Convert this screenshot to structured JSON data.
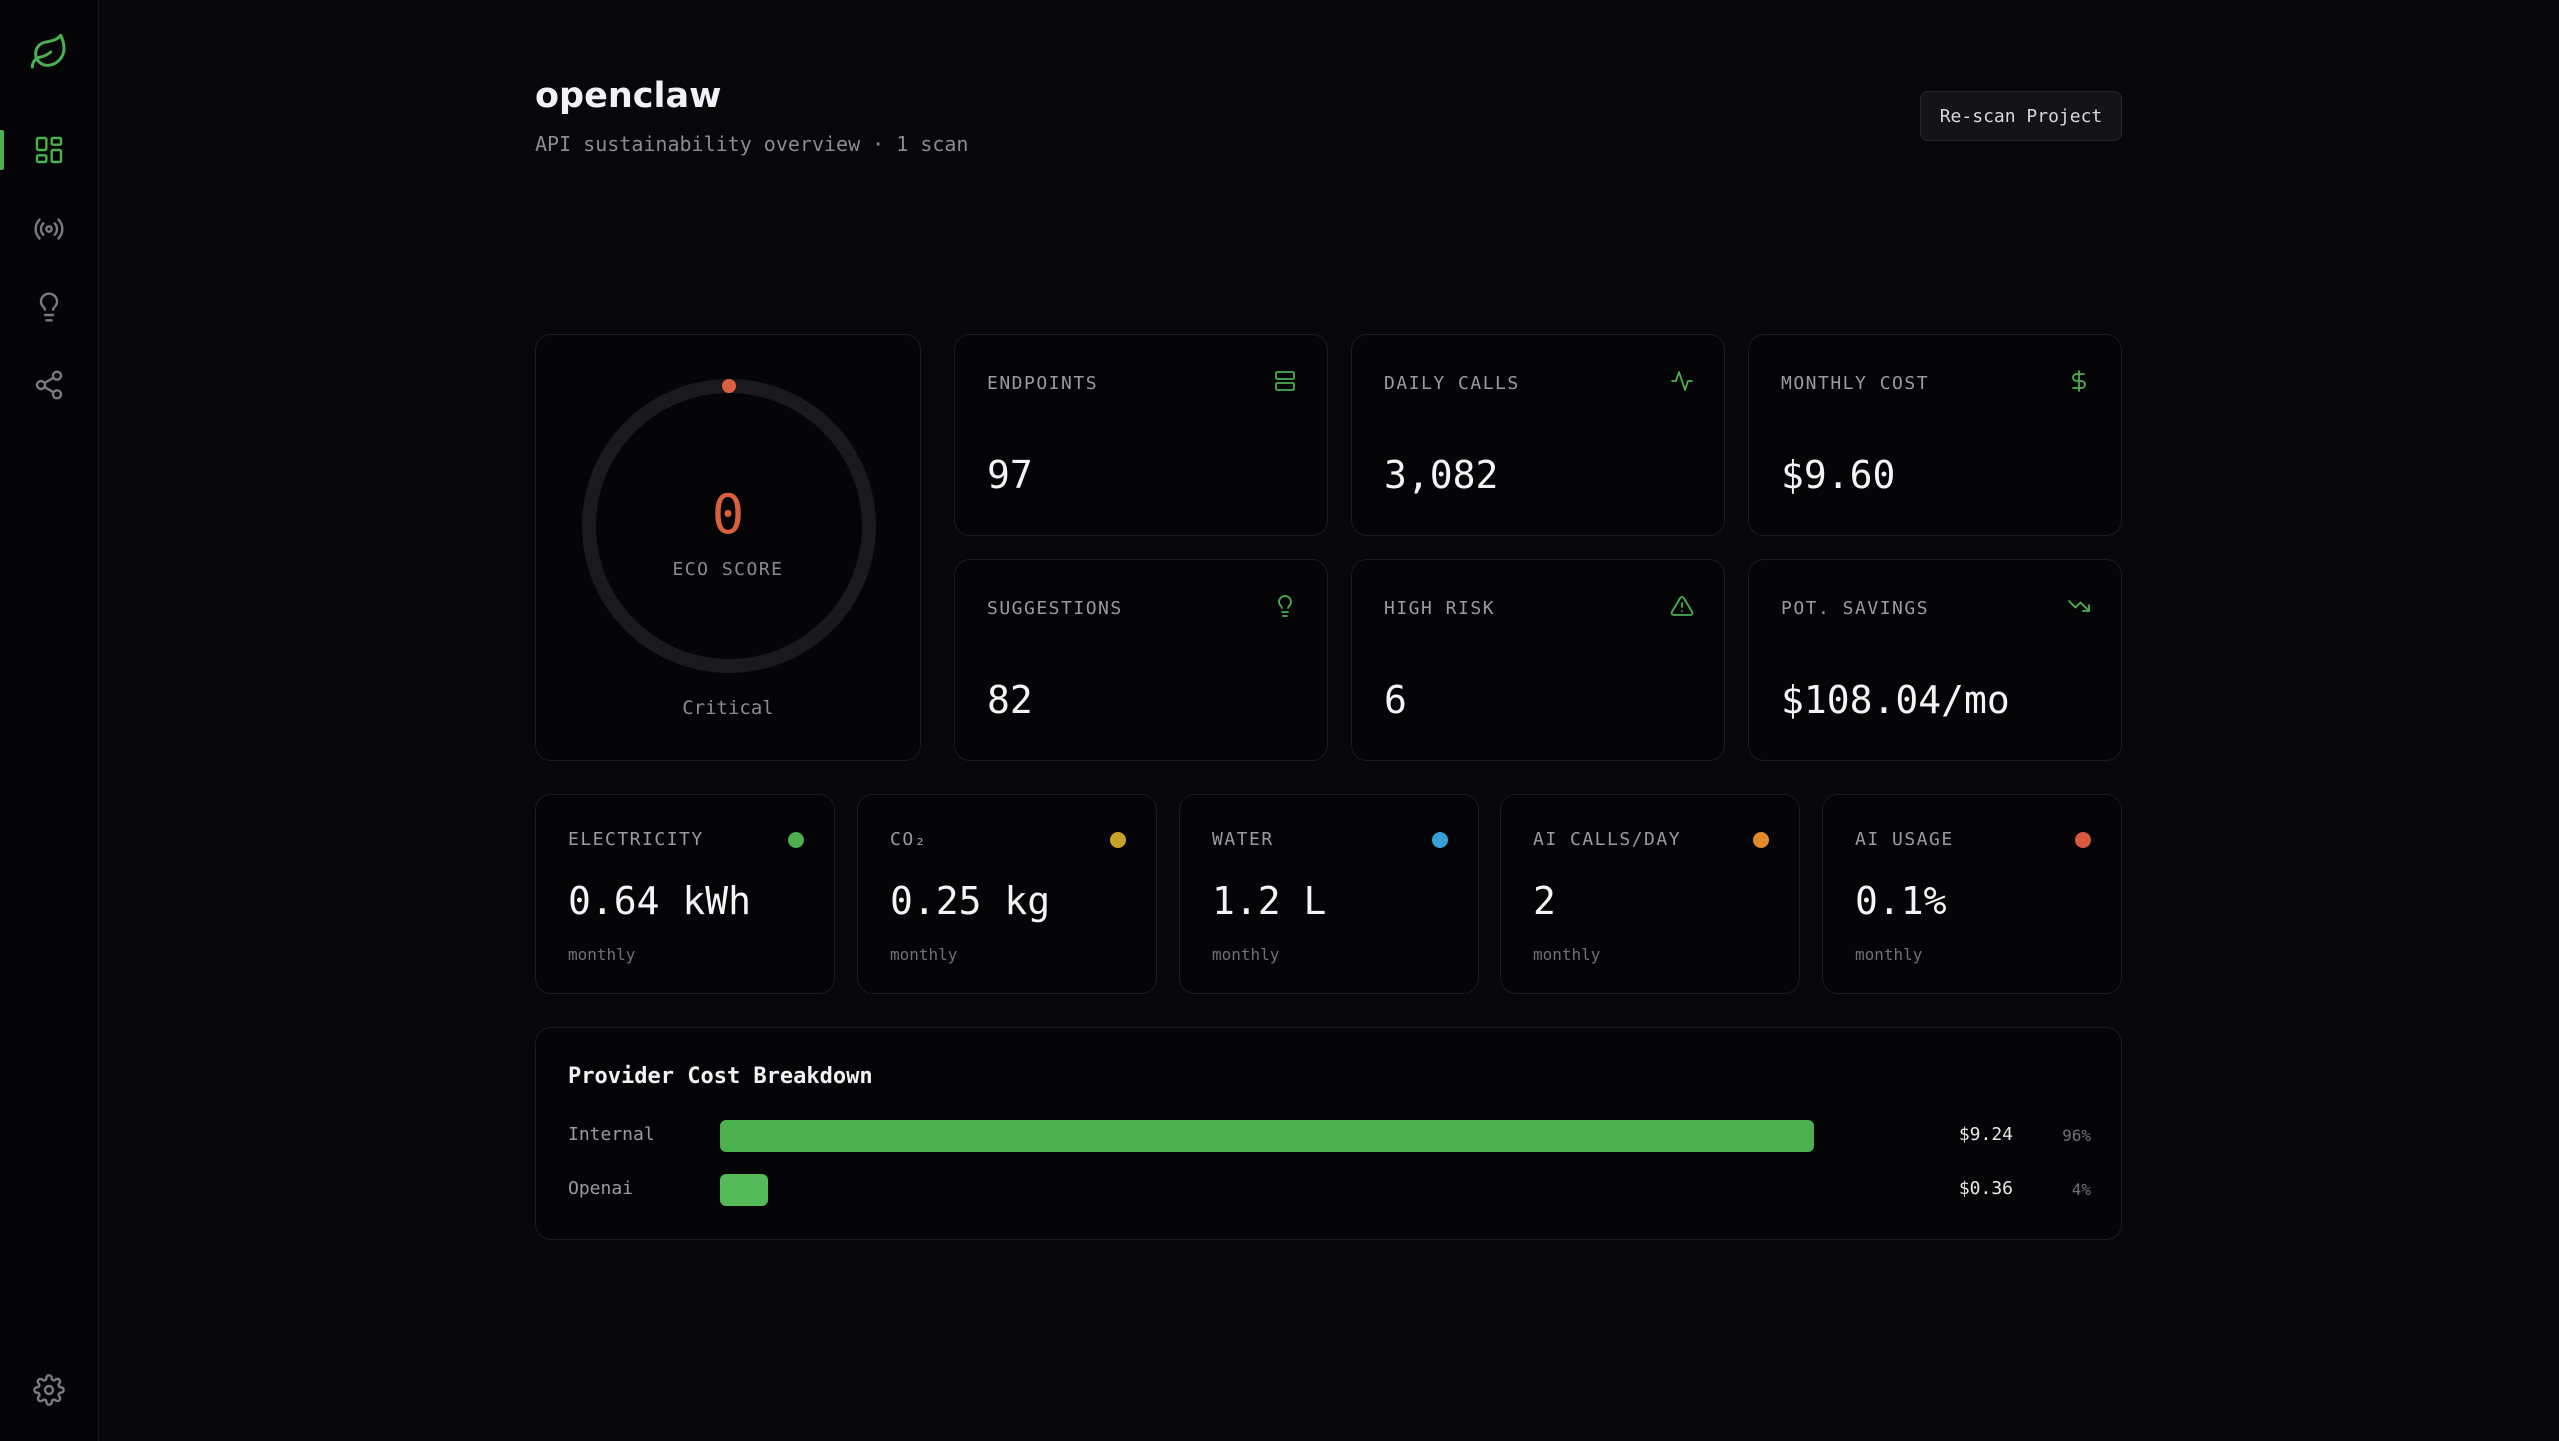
{
  "app": {
    "title": "openclaw",
    "subtitle": "API sustainability overview · 1 scan",
    "rescan_label": "Re-scan Project",
    "accent_color": "#4caf50"
  },
  "sidebar": {
    "items": [
      {
        "name": "dashboard",
        "icon": "dashboard-icon",
        "active": true
      },
      {
        "name": "scans",
        "icon": "broadcast-icon",
        "active": false
      },
      {
        "name": "suggestions",
        "icon": "lightbulb-icon",
        "active": false
      },
      {
        "name": "graph",
        "icon": "share-icon",
        "active": false
      }
    ],
    "settings_icon": "gear-icon",
    "logo_icon": "leaf-icon"
  },
  "eco": {
    "score": "0",
    "score_value": 0,
    "label": "ECO SCORE",
    "status": "Critical",
    "score_color": "#d9603f"
  },
  "stats": [
    {
      "label": "ENDPOINTS",
      "value": "97",
      "icon": "server-icon"
    },
    {
      "label": "DAILY CALLS",
      "value": "3,082",
      "icon": "activity-icon"
    },
    {
      "label": "MONTHLY COST",
      "value": "$9.60",
      "icon": "dollar-icon"
    },
    {
      "label": "SUGGESTIONS",
      "value": "82",
      "icon": "lightbulb-icon"
    },
    {
      "label": "HIGH RISK",
      "value": "6",
      "icon": "warning-icon"
    },
    {
      "label": "POT. SAVINGS",
      "value": "$108.04/mo",
      "icon": "trending-down-icon"
    }
  ],
  "metrics": [
    {
      "label": "ELECTRICITY",
      "value": "0.64 kWh",
      "period": "monthly",
      "color": "#4caf50"
    },
    {
      "label": "CO₂",
      "value": "0.25 kg",
      "period": "monthly",
      "color": "#c9a227"
    },
    {
      "label": "WATER",
      "value": "1.2 L",
      "period": "monthly",
      "color": "#3a9fd6"
    },
    {
      "label": "AI CALLS/DAY",
      "value": "2",
      "period": "monthly",
      "color": "#e08a2e"
    },
    {
      "label": "AI USAGE",
      "value": "0.1%",
      "period": "monthly",
      "color": "#d9573f"
    }
  ],
  "breakdown": {
    "title": "Provider Cost Breakdown",
    "rows": [
      {
        "label": "Internal",
        "amount": "$9.24",
        "pct": "96%",
        "share": 0.96
      },
      {
        "label": "Openai",
        "amount": "$0.36",
        "pct": "4%",
        "share": 0.04
      }
    ]
  }
}
